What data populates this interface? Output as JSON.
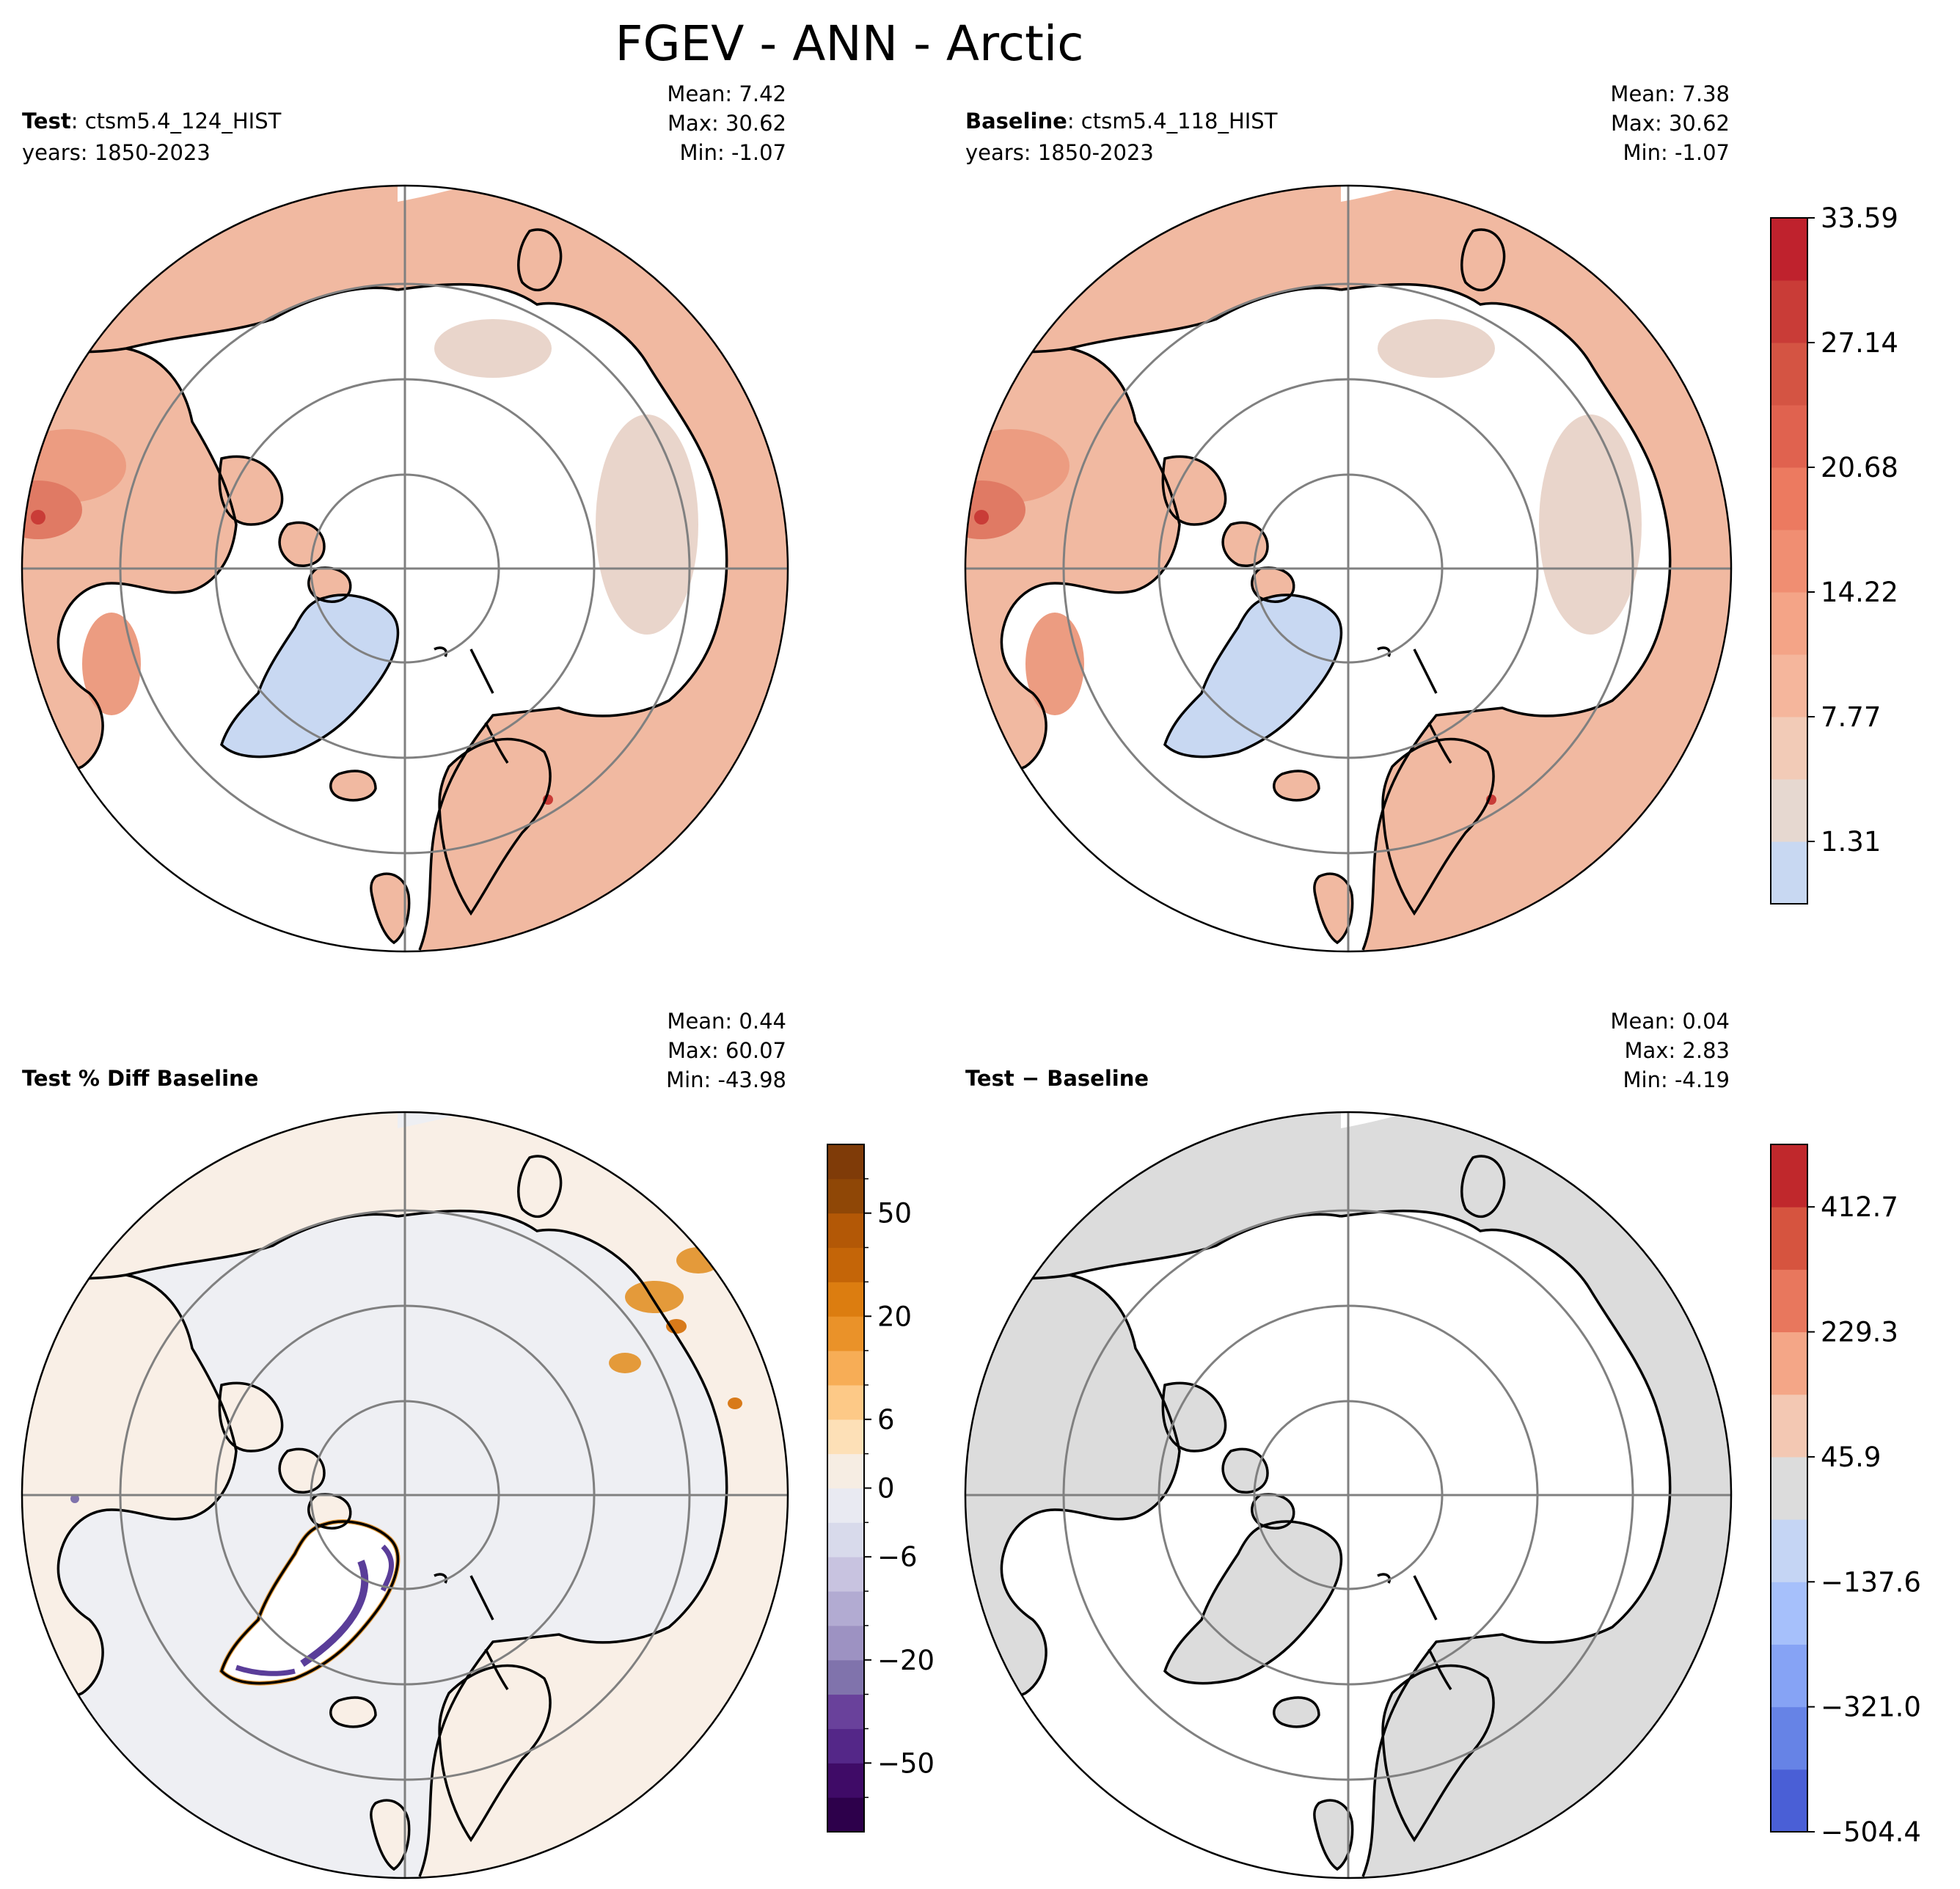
{
  "figure": {
    "title": "FGEV - ANN - Arctic"
  },
  "panels": [
    {
      "id": "test",
      "label_bold": "Test",
      "label_rest": ": ctsm5.4_124_HIST",
      "years": "years: 1850-2023",
      "stats": {
        "mean": "Mean:  7.42",
        "max": "Max: 30.62",
        "min": "Min: -1.07"
      },
      "fill": "test"
    },
    {
      "id": "baseline",
      "label_bold": "Baseline",
      "label_rest": ": ctsm5.4_118_HIST",
      "years": "years: 1850-2023",
      "stats": {
        "mean": "Mean:  7.38",
        "max": "Max: 30.62",
        "min": "Min: -1.07"
      },
      "fill": "test"
    },
    {
      "id": "pctdiff",
      "label_bold": "Test % Diff Baseline",
      "label_rest": "",
      "years": "",
      "stats": {
        "mean": "Mean:  0.44",
        "max": "Max: 60.07",
        "min": "Min: -43.98"
      },
      "fill": "pctdiff"
    },
    {
      "id": "diff",
      "label_bold": "Test − Baseline",
      "label_rest": "",
      "years": "",
      "stats": {
        "mean": "Mean:  0.04",
        "max": "Max:  2.83",
        "min": "Min: -4.19"
      },
      "fill": "diff"
    }
  ],
  "colorbars": [
    {
      "id": "main",
      "colors": [
        "#c8d8f2",
        "#e6d8d0",
        "#f2cbb7",
        "#f5b69c",
        "#f4a487",
        "#f08e72",
        "#ec7a60",
        "#e0624f",
        "#d45443",
        "#c93c37",
        "#bf222d"
      ],
      "ticks": [
        "1.31",
        "7.77",
        "14.22",
        "20.68",
        "27.14",
        "33.59"
      ],
      "tick_positions": [
        1,
        3,
        5,
        7,
        9,
        11
      ]
    },
    {
      "id": "pct",
      "colors": [
        "#2d004b",
        "#3f0b67",
        "#542788",
        "#69419b",
        "#8073ac",
        "#9d92c2",
        "#b2abd2",
        "#c8c3e0",
        "#d8daeb",
        "#e9eaf2",
        "#f6ede3",
        "#fde0b7",
        "#fdc987",
        "#f7ad56",
        "#ea9229",
        "#dc7d10",
        "#c46508",
        "#b35806",
        "#8f4706",
        "#7f3b08"
      ],
      "ticks": [
        "−50",
        "−20",
        "−6",
        "0",
        "6",
        "20",
        "50"
      ],
      "tick_positions": [
        2,
        5,
        8,
        10,
        12,
        15,
        18
      ],
      "minor_ticks": [
        1,
        3,
        4,
        6,
        7,
        9,
        11,
        13,
        14,
        16,
        17,
        19
      ]
    },
    {
      "id": "diffbar",
      "colors": [
        "#4a5fd6",
        "#6683e6",
        "#86a3f5",
        "#a6c0fb",
        "#c5d5f4",
        "#dcdcdc",
        "#f3c8b3",
        "#f4a687",
        "#e8775d",
        "#d6543f",
        "#c0282c"
      ],
      "ticks": [
        "−504.4",
        "−321.0",
        "−137.6",
        "45.9",
        "229.3",
        "412.7"
      ],
      "tick_positions": [
        0,
        2,
        4,
        6,
        8,
        10
      ]
    }
  ],
  "colors": {
    "land_default": "#f1b9a1",
    "land_warm": "#ec9c81",
    "land_pale": "#e9d5cb",
    "greenland_ice": "#c8d8f2",
    "pct_background": "#eeeff3",
    "pct_land": "#f9efe6",
    "pct_orange": "#e49a3a",
    "pct_purple": "#5a3d99",
    "diff_gray": "#dcdcdc",
    "grid": "#808080",
    "coast": "#000000"
  }
}
